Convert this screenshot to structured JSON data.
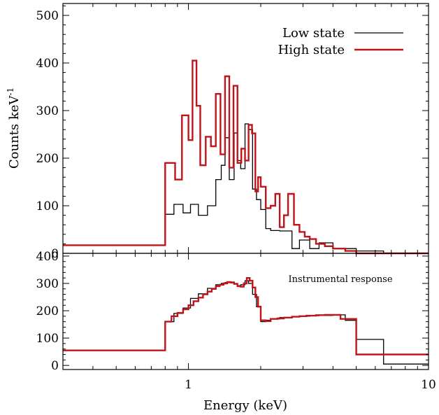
{
  "chart_data": [
    {
      "type": "line",
      "step": true,
      "title": "",
      "xlabel": "",
      "ylabel": "Counts keV",
      "ylabel_superscript": "-1",
      "xscale": "log",
      "xlim": [
        0.3,
        10
      ],
      "ylim": [
        0,
        525
      ],
      "yticks": [
        0,
        100,
        200,
        300,
        400,
        500
      ],
      "yticklabels": [
        "0",
        "100",
        "200",
        "300",
        "400",
        "500"
      ],
      "legend": {
        "placement": "top-right"
      },
      "series": [
        {
          "name": "Low state",
          "color": "#000000",
          "edges": [
            0.3,
            0.8,
            0.87,
            0.95,
            1.02,
            1.1,
            1.2,
            1.3,
            1.37,
            1.42,
            1.48,
            1.55,
            1.6,
            1.65,
            1.72,
            1.78,
            1.85,
            1.92,
            2.0,
            2.1,
            2.2,
            2.4,
            2.7,
            2.9,
            3.2,
            3.5,
            4.0,
            5.0,
            6.5,
            10.0
          ],
          "values": [
            17,
            82,
            103,
            85,
            103,
            80,
            100,
            155,
            185,
            243,
            155,
            253,
            195,
            178,
            272,
            260,
            135,
            113,
            92,
            52,
            48,
            47,
            10,
            28,
            10,
            22,
            10,
            5,
            0
          ]
        },
        {
          "name": "High state",
          "color": "#c0141a",
          "edges": [
            0.3,
            0.8,
            0.88,
            0.94,
            1.0,
            1.04,
            1.08,
            1.12,
            1.18,
            1.24,
            1.3,
            1.36,
            1.42,
            1.48,
            1.54,
            1.6,
            1.66,
            1.72,
            1.78,
            1.84,
            1.9,
            1.95,
            2.0,
            2.1,
            2.2,
            2.3,
            2.4,
            2.5,
            2.6,
            2.75,
            2.9,
            3.05,
            3.2,
            3.4,
            3.7,
            4.0,
            4.5,
            5.0,
            10.0
          ],
          "values": [
            17,
            190,
            155,
            290,
            238,
            405,
            310,
            185,
            245,
            225,
            335,
            208,
            372,
            180,
            352,
            190,
            220,
            195,
            270,
            252,
            130,
            160,
            140,
            95,
            100,
            125,
            55,
            80,
            125,
            60,
            45,
            35,
            30,
            20,
            15,
            10,
            5,
            0
          ]
        }
      ]
    },
    {
      "type": "line",
      "step": true,
      "title": "",
      "annotation": "Instrumental response",
      "xlabel": "Energy (keV)",
      "ylabel": "",
      "xscale": "log",
      "xlim": [
        0.3,
        10
      ],
      "ylim": [
        -15,
        410
      ],
      "xticks": [
        1,
        10
      ],
      "xticklabels": [
        "1",
        "10"
      ],
      "yticks": [
        0,
        100,
        200,
        300,
        400
      ],
      "yticklabels": [
        "0",
        "100",
        "200",
        "300",
        "400"
      ],
      "series": [
        {
          "color": "#000000",
          "edges": [
            0.3,
            0.8,
            0.87,
            0.95,
            1.02,
            1.1,
            1.2,
            1.3,
            1.37,
            1.42,
            1.48,
            1.55,
            1.6,
            1.65,
            1.72,
            1.78,
            1.85,
            1.92,
            2.0,
            2.1,
            2.2,
            2.4,
            2.7,
            2.9,
            3.2,
            3.5,
            4.0,
            4.5,
            5.0,
            6.5,
            10.0
          ],
          "values": [
            55,
            160,
            190,
            210,
            245,
            262,
            282,
            295,
            300,
            303,
            305,
            300,
            292,
            295,
            310,
            300,
            260,
            215,
            160,
            165,
            170,
            175,
            178,
            180,
            182,
            183,
            185,
            165,
            95,
            5
          ]
        },
        {
          "color": "#c0141a",
          "edges": [
            0.3,
            0.8,
            0.85,
            0.9,
            0.95,
            1.0,
            1.05,
            1.1,
            1.15,
            1.2,
            1.25,
            1.3,
            1.35,
            1.4,
            1.45,
            1.5,
            1.55,
            1.6,
            1.65,
            1.7,
            1.75,
            1.8,
            1.85,
            1.9,
            1.95,
            2.0,
            2.1,
            2.2,
            2.35,
            2.5,
            2.7,
            2.9,
            3.1,
            3.4,
            3.7,
            4.0,
            4.3,
            5.0,
            10.0
          ],
          "values": [
            55,
            160,
            180,
            192,
            205,
            220,
            235,
            248,
            260,
            270,
            280,
            290,
            295,
            300,
            305,
            303,
            298,
            290,
            288,
            300,
            320,
            310,
            285,
            250,
            215,
            165,
            162,
            170,
            172,
            175,
            178,
            180,
            182,
            184,
            185,
            185,
            170,
            40
          ]
        }
      ]
    }
  ]
}
